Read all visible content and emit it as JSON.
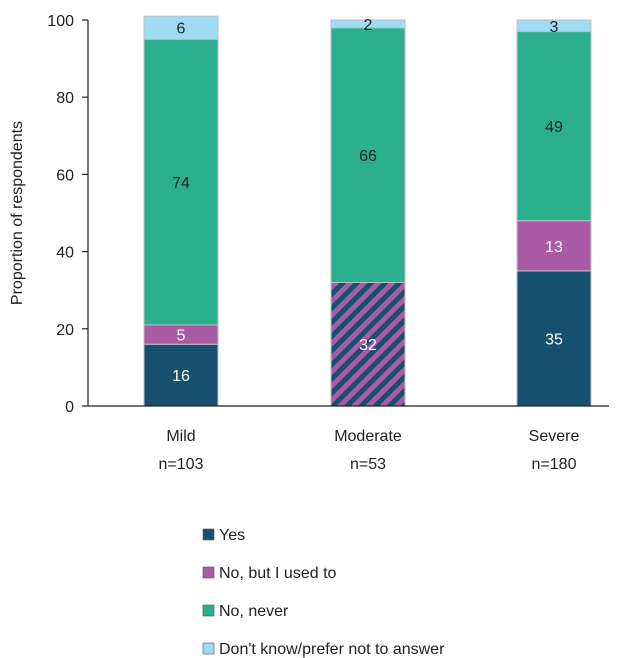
{
  "chart_data": {
    "type": "bar",
    "stacked": true,
    "title": "",
    "xlabel": "",
    "ylabel": "Proportion of respondents",
    "ylim": [
      0,
      100
    ],
    "yticks": [
      0,
      20,
      40,
      60,
      80,
      100
    ],
    "grid": false,
    "legend_position": "bottom",
    "categories": [
      {
        "name": "Mild",
        "n": "n=103"
      },
      {
        "name": "Moderate",
        "n": "n=53"
      },
      {
        "name": "Severe",
        "n": "n=180"
      }
    ],
    "series": [
      {
        "name": "Yes",
        "color": "#17506F",
        "label_color": "#ffffff",
        "values": [
          16,
          32,
          35
        ]
      },
      {
        "name": "No, but I used to",
        "color": "#A95BA6",
        "label_color": "#ffffff",
        "values": [
          5,
          0,
          13
        ]
      },
      {
        "name": "No, never",
        "color": "#2BAF8F",
        "label_color": "#222222",
        "values": [
          74,
          66,
          49
        ]
      },
      {
        "name": "Don't know/prefer not to answer",
        "color": "#9EDCF5",
        "label_color": "#222222",
        "values": [
          6,
          2,
          3
        ]
      }
    ],
    "hatched_bars": [
      {
        "category": "Moderate",
        "label": "32",
        "total": 32,
        "colors": [
          "#17506F",
          "#A95BA6"
        ]
      }
    ]
  }
}
